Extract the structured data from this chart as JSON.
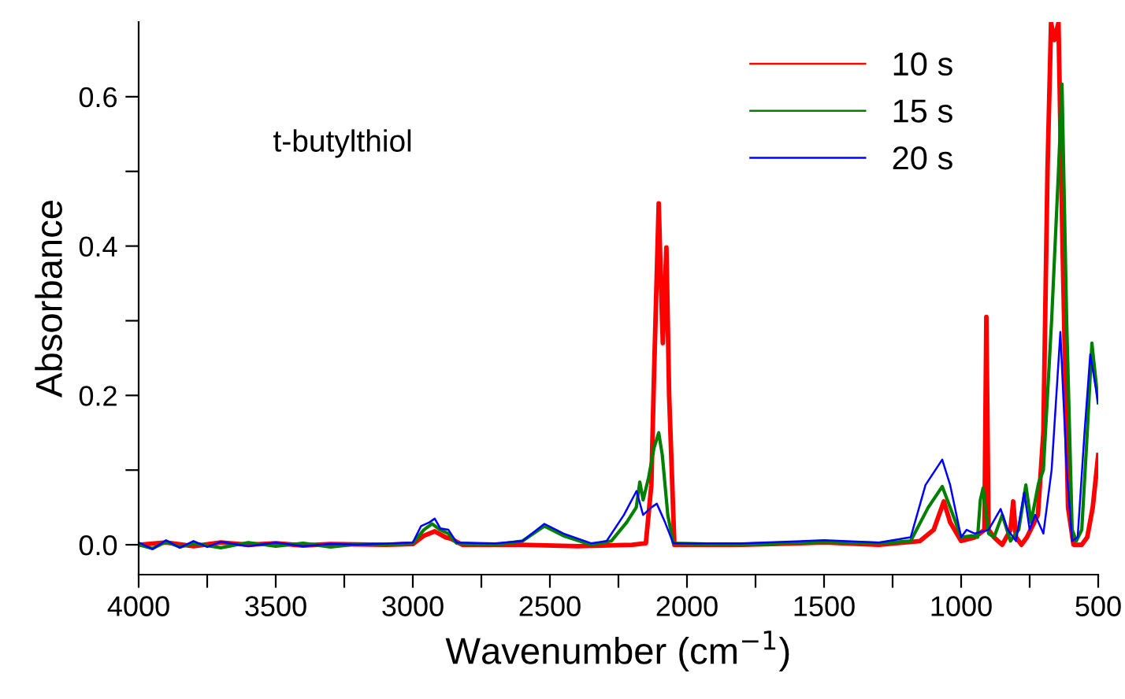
{
  "chart_data": {
    "type": "line",
    "xlabel": "Wavenumber (cm$^{−1}$)",
    "ylabel": "Absorbance",
    "annotations": [
      "t-butylthiol"
    ],
    "xlim": [
      4000,
      500
    ],
    "ylim": [
      -0.04,
      0.7
    ],
    "xticks": [
      4000,
      {
        "value": 3750,
        "label": null
      },
      3500,
      {
        "value": 3250,
        "label": null
      },
      3000,
      {
        "value": 2750,
        "label": null
      },
      2500,
      {
        "value": 2250,
        "label": null
      },
      2000,
      {
        "value": 1750,
        "label": null
      },
      1500,
      {
        "value": 1250,
        "label": null
      },
      1000,
      {
        "value": 750,
        "label": null
      },
      500
    ],
    "yticks": [
      {
        "value": 0,
        "label": "0.0"
      },
      {
        "value": 0.1,
        "label": null
      },
      0.2,
      {
        "value": 0.3,
        "label": null
      },
      0.4,
      {
        "value": 0.5,
        "label": null
      },
      0.6
    ],
    "grid": false,
    "legend": "top right",
    "marker": "none",
    "line_style": "solid",
    "series": [
      {
        "name": "10 s",
        "color": "#ff0000",
        "x": [
          4000,
          3900,
          3800,
          3700,
          3600,
          3500,
          3400,
          3300,
          3100,
          3000,
          2960,
          2920,
          2880,
          2860,
          2820,
          2600,
          2400,
          2200,
          2150,
          2130,
          2120,
          2103,
          2095,
          2088,
          2075,
          2065,
          2046,
          1800,
          1500,
          1300,
          1150,
          1100,
          1063,
          1040,
          1000,
          950,
          915,
          908,
          900,
          880,
          850,
          820,
          810,
          800,
          780,
          760,
          720,
          700,
          685,
          672,
          660,
          645,
          630,
          610,
          590,
          560,
          540,
          520,
          500
        ],
        "values": [
          0.0,
          0.003,
          -0.002,
          0.003,
          0.0,
          0.002,
          -0.001,
          0.001,
          0.0,
          0.001,
          0.012,
          0.018,
          0.01,
          0.008,
          0.0,
          0.0,
          -0.002,
          0.0,
          0.002,
          0.08,
          0.23,
          0.457,
          0.35,
          0.27,
          0.398,
          0.2,
          0.0,
          0.0,
          0.003,
          0.0,
          0.005,
          0.02,
          0.058,
          0.03,
          0.005,
          0.01,
          0.02,
          0.305,
          0.02,
          0.01,
          0.0,
          0.02,
          0.058,
          0.01,
          0.0,
          0.01,
          0.04,
          0.15,
          0.5,
          0.699,
          0.676,
          0.699,
          0.4,
          0.05,
          0.0,
          0.0,
          0.01,
          0.05,
          0.12
        ]
      },
      {
        "name": "15 s",
        "color": "#008000",
        "x": [
          4000,
          3950,
          3900,
          3850,
          3800,
          3700,
          3600,
          3500,
          3400,
          3300,
          3200,
          3100,
          3000,
          2960,
          2930,
          2900,
          2870,
          2840,
          2700,
          2600,
          2520,
          2450,
          2350,
          2276,
          2220,
          2185,
          2172,
          2160,
          2140,
          2120,
          2103,
          2090,
          2070,
          2050,
          1800,
          1500,
          1300,
          1184,
          1120,
          1069,
          1040,
          1000,
          960,
          940,
          930,
          920,
          900,
          880,
          850,
          820,
          790,
          764,
          745,
          718,
          700,
          670,
          645,
          632,
          615,
          595,
          580,
          560,
          540,
          523,
          500
        ],
        "values": [
          0.0,
          -0.005,
          0.004,
          -0.003,
          0.002,
          -0.004,
          0.003,
          -0.002,
          0.002,
          -0.003,
          0.001,
          0.0,
          0.002,
          0.02,
          0.028,
          0.02,
          0.015,
          0.002,
          0.0,
          0.005,
          0.025,
          0.012,
          0.0,
          0.005,
          0.03,
          0.05,
          0.084,
          0.06,
          0.09,
          0.13,
          0.15,
          0.12,
          0.04,
          0.002,
          0.0,
          0.004,
          0.002,
          0.005,
          0.05,
          0.078,
          0.05,
          0.01,
          0.012,
          0.01,
          0.06,
          0.076,
          0.015,
          0.01,
          0.04,
          0.005,
          0.02,
          0.08,
          0.03,
          0.082,
          0.1,
          0.3,
          0.5,
          0.617,
          0.3,
          0.02,
          0.005,
          0.02,
          0.15,
          0.27,
          0.19
        ]
      },
      {
        "name": "20 s",
        "color": "#0000ff",
        "x": [
          4000,
          3950,
          3900,
          3850,
          3800,
          3750,
          3700,
          3600,
          3500,
          3400,
          3300,
          3200,
          3000,
          2970,
          2940,
          2920,
          2900,
          2870,
          2840,
          2700,
          2600,
          2520,
          2450,
          2350,
          2293,
          2230,
          2184,
          2160,
          2130,
          2110,
          2080,
          2050,
          1800,
          1500,
          1300,
          1184,
          1130,
          1069,
          1040,
          1000,
          980,
          950,
          900,
          856,
          830,
          800,
          770,
          750,
          730,
          700,
          670,
          638,
          615,
          595,
          575,
          550,
          529,
          500
        ],
        "values": [
          0.003,
          -0.006,
          0.006,
          -0.004,
          0.005,
          -0.003,
          0.004,
          -0.002,
          0.003,
          -0.002,
          0.001,
          0.0,
          0.003,
          0.025,
          0.03,
          0.035,
          0.022,
          0.02,
          0.003,
          0.002,
          0.005,
          0.028,
          0.015,
          0.002,
          0.005,
          0.04,
          0.072,
          0.04,
          0.05,
          0.055,
          0.03,
          0.002,
          0.002,
          0.006,
          0.003,
          0.01,
          0.08,
          0.114,
          0.08,
          0.01,
          0.02,
          0.015,
          0.02,
          0.048,
          0.02,
          0.005,
          0.07,
          0.02,
          0.04,
          0.015,
          0.1,
          0.285,
          0.1,
          0.005,
          0.01,
          0.15,
          0.255,
          0.19
        ]
      }
    ]
  }
}
